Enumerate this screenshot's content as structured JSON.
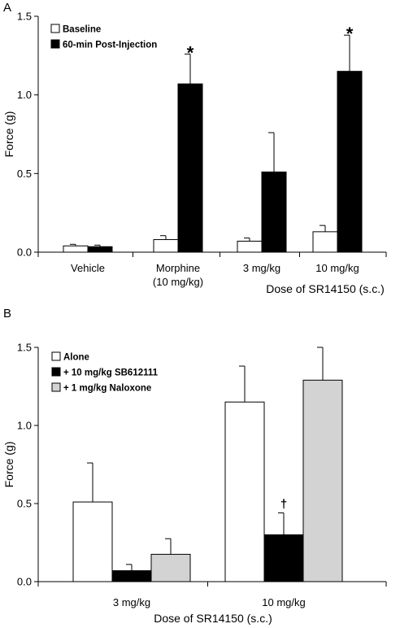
{
  "colors": {
    "white_bar": "#ffffff",
    "black_bar": "#000000",
    "gray_bar": "#d3d3d3",
    "axis": "#000000"
  },
  "chart_data": [
    {
      "panel_label": "A",
      "type": "bar",
      "ylabel": "Force (g)",
      "xlabel": "Dose of SR14150 (s.c.)",
      "ylim": [
        0,
        1.5
      ],
      "yticks": [
        "0.0",
        "0.5",
        "1.0",
        "1.5"
      ],
      "grid": false,
      "legend_position": "top-left",
      "categories": [
        {
          "line1": "Vehicle",
          "line2": ""
        },
        {
          "line1": "Morphine",
          "line2": "(10 mg/kg)"
        },
        {
          "line1": "3 mg/kg",
          "line2": ""
        },
        {
          "line1": "10 mg/kg",
          "line2": ""
        }
      ],
      "series": [
        {
          "name": "Baseline",
          "color": "#ffffff",
          "values": [
            0.04,
            0.08,
            0.07,
            0.13
          ],
          "errors": [
            0.01,
            0.025,
            0.02,
            0.04
          ]
        },
        {
          "name": "60-min Post-Injection",
          "color": "#000000",
          "values": [
            0.035,
            1.07,
            0.51,
            1.15
          ],
          "errors": [
            0.01,
            0.19,
            0.25,
            0.23
          ]
        }
      ],
      "annotations": [
        {
          "text": "*",
          "category": 1,
          "series": 1
        },
        {
          "text": "*",
          "category": 3,
          "series": 1
        }
      ]
    },
    {
      "panel_label": "B",
      "type": "bar",
      "ylabel": "Force (g)",
      "xlabel": "Dose of SR14150 (s.c.)",
      "ylim": [
        0,
        1.5
      ],
      "yticks": [
        "0.0",
        "0.5",
        "1.0",
        "1.5"
      ],
      "grid": false,
      "legend_position": "top-left",
      "categories": [
        {
          "line1": "3 mg/kg",
          "line2": ""
        },
        {
          "line1": "10 mg/kg",
          "line2": ""
        }
      ],
      "series": [
        {
          "name": "Alone",
          "color": "#ffffff",
          "values": [
            0.51,
            1.15
          ],
          "errors": [
            0.25,
            0.23
          ]
        },
        {
          "name": "+ 10 mg/kg SB612111",
          "color": "#000000",
          "values": [
            0.07,
            0.3
          ],
          "errors": [
            0.04,
            0.14
          ]
        },
        {
          "name": "+ 1 mg/kg Naloxone",
          "color": "#d3d3d3",
          "values": [
            0.175,
            1.29
          ],
          "errors": [
            0.1,
            0.21
          ]
        }
      ],
      "annotations": [
        {
          "text": "†",
          "category": 1,
          "series": 1
        }
      ]
    }
  ]
}
